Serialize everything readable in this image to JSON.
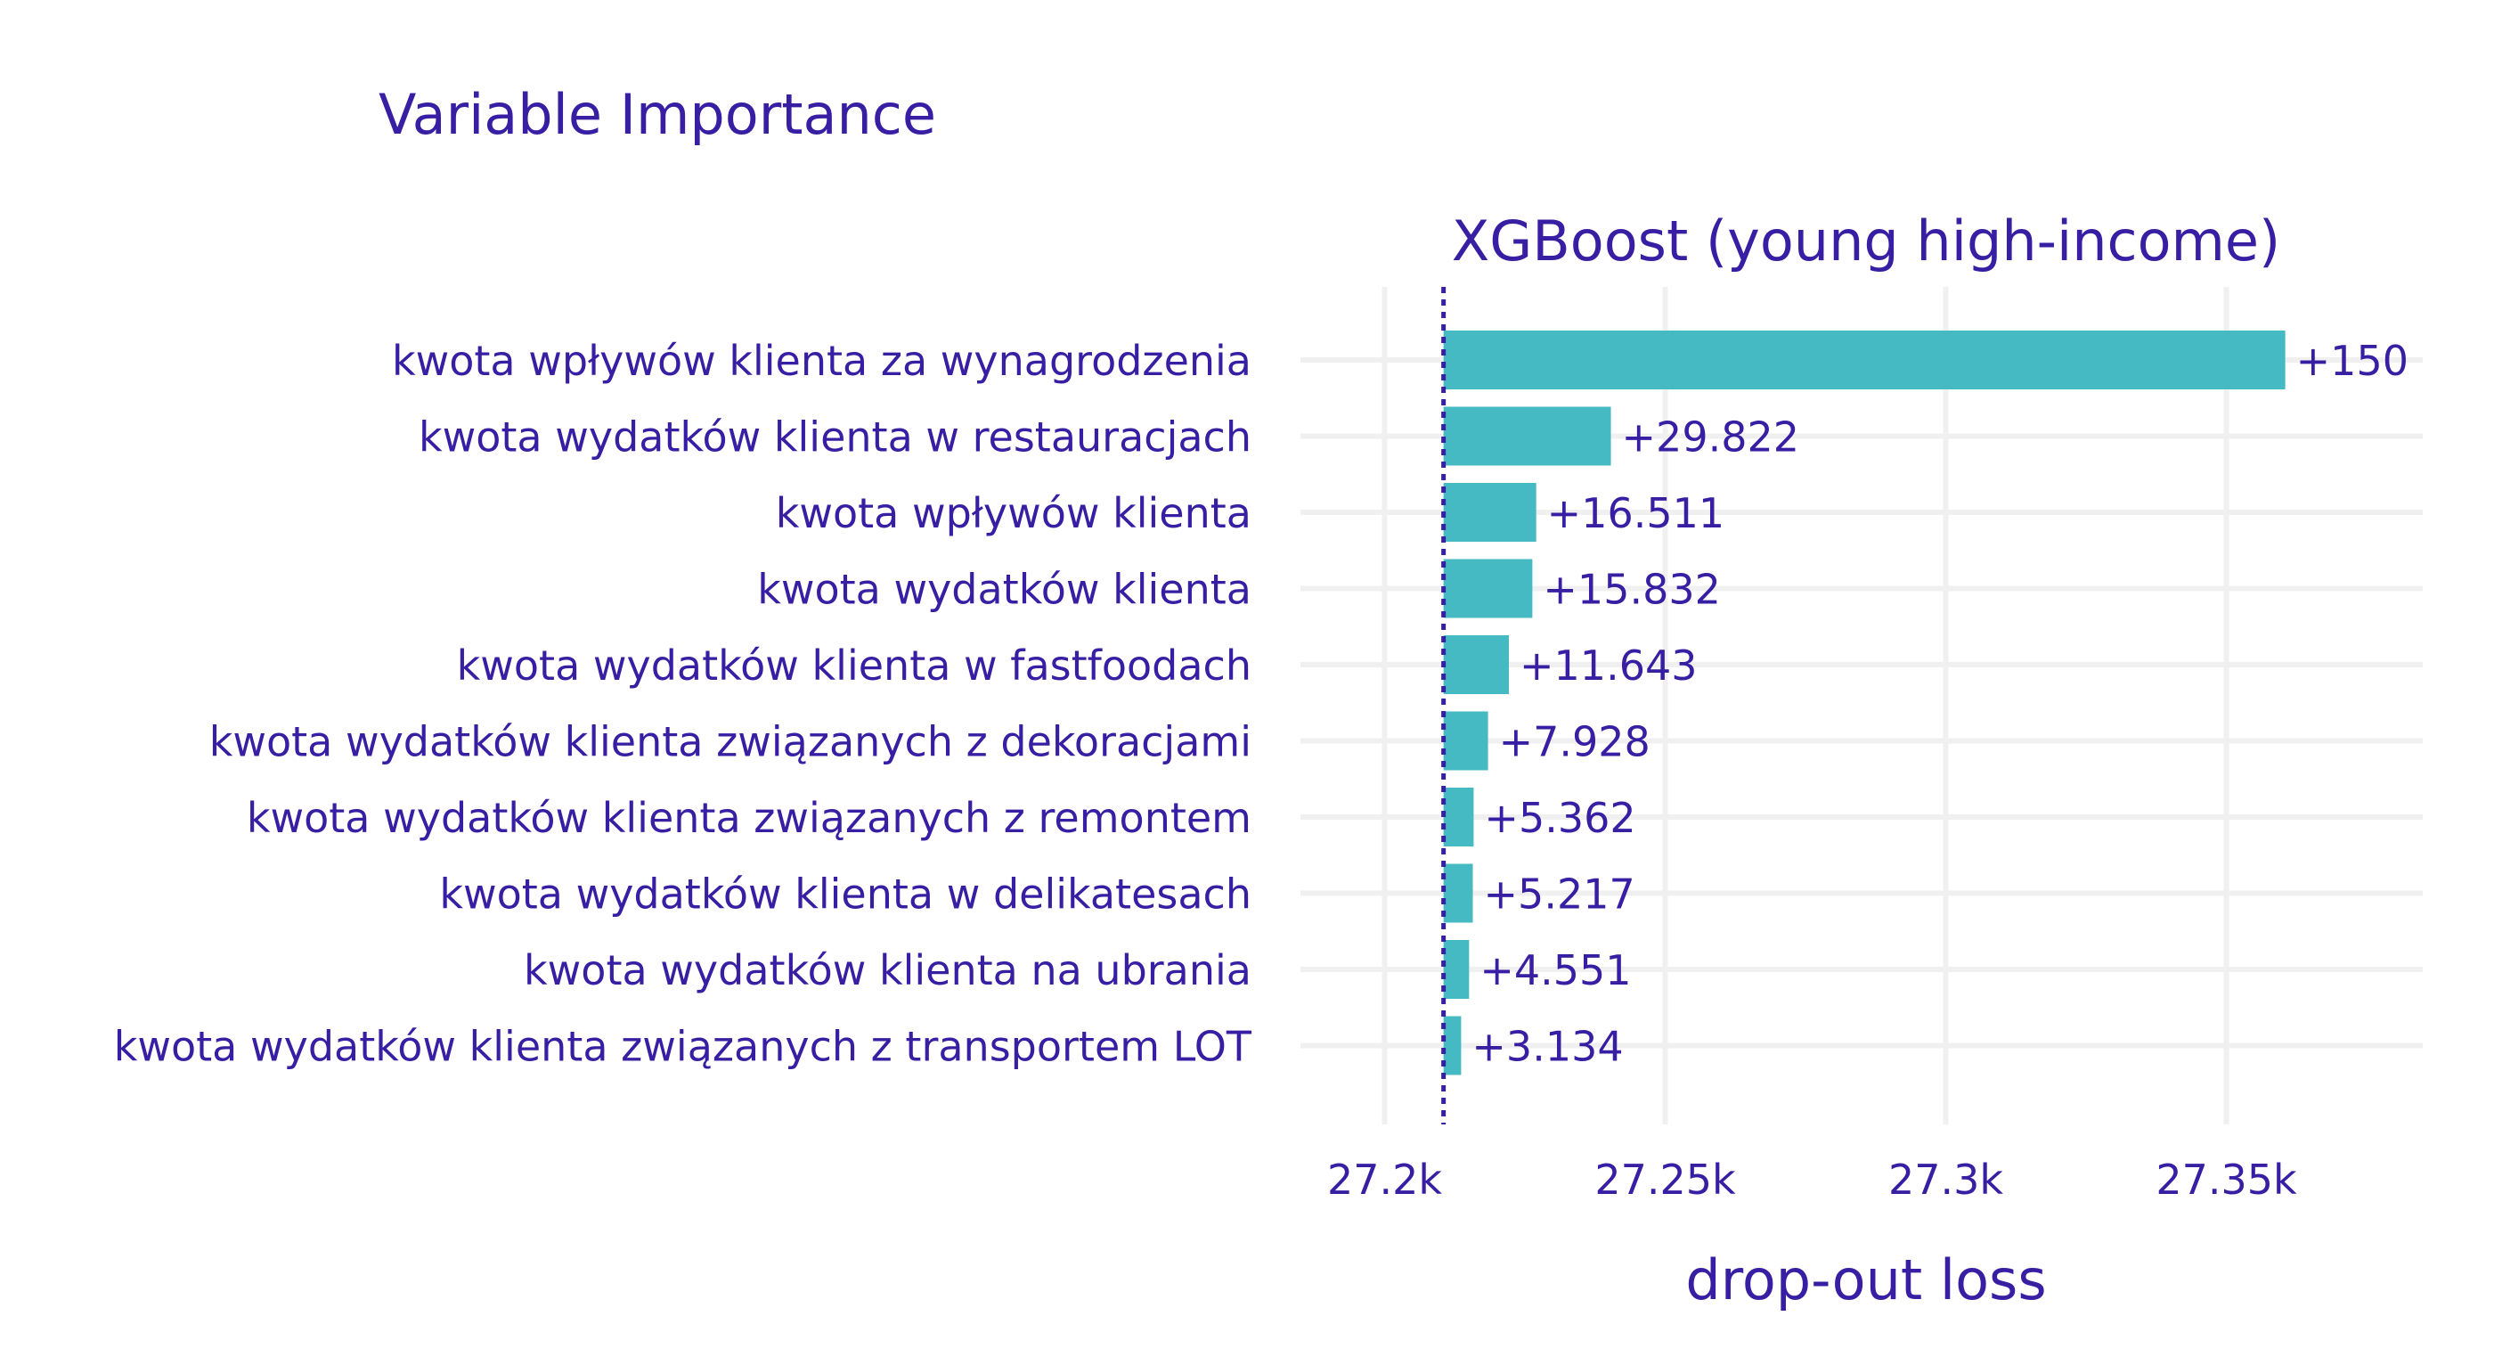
{
  "chart_data": {
    "type": "bar",
    "orientation": "horizontal",
    "title": "Variable Importance",
    "subtitle": "XGBoost (young high-income)",
    "xlabel": "drop-out loss",
    "ylabel": "",
    "baseline": 27210.5,
    "xlim": [
      27185,
      27385
    ],
    "xticks": [
      27200,
      27250,
      27300,
      27350
    ],
    "xtick_labels": [
      "27.2k",
      "27.25k",
      "27.3k",
      "27.35k"
    ],
    "categories": [
      "kwota wpływów klienta za wynagrodzenia",
      "kwota wydatków klienta w restauracjach",
      "kwota wpływów klienta",
      "kwota wydatków klienta",
      "kwota wydatków klienta w fastfoodach",
      "kwota wydatków klienta związanych z dekoracjami",
      "kwota wydatków klienta związanych z remontem",
      "kwota wydatków klienta w delikatesach",
      "kwota wydatków klienta na ubrania",
      "kwota wydatków klienta związanych z transportem LOT"
    ],
    "values": [
      150,
      29.822,
      16.511,
      15.832,
      11.643,
      7.928,
      5.362,
      5.217,
      4.551,
      3.134
    ],
    "value_labels": [
      "+150",
      "+29.822",
      "+16.511",
      "+15.832",
      "+11.643",
      "+7.928",
      "+5.362",
      "+5.217",
      "+4.551",
      "+3.134"
    ],
    "grid": true,
    "legend": "none",
    "colors": {
      "bar": "#46bac2",
      "text": "#371ea3",
      "grid": "#f0f0f0",
      "baseline": "#371ea3"
    }
  }
}
